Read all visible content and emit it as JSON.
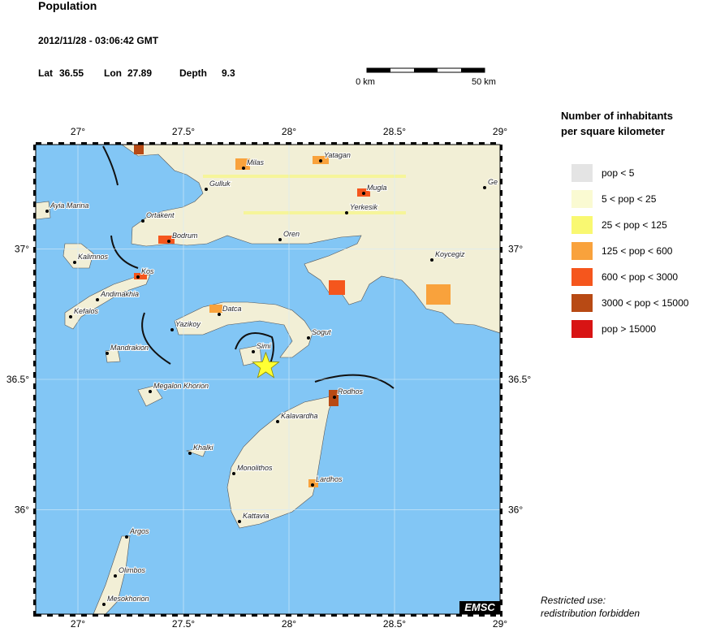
{
  "header": {
    "title": "Population",
    "datetime": "2012/11/28 - 03:06:42 GMT",
    "lat_label": "Lat",
    "lat": 36.55,
    "lon_label": "Lon",
    "lon": 27.89,
    "depth_label": "Depth",
    "depth": 9.3
  },
  "scale": {
    "start": "0 km",
    "end": "50 km"
  },
  "map": {
    "xlim": [
      26.8,
      29.0
    ],
    "ylim": [
      35.6,
      37.4
    ],
    "xticks": [
      {
        "value": 27,
        "label": "27°"
      },
      {
        "value": 27.5,
        "label": "27.5°"
      },
      {
        "value": 28,
        "label": "28°"
      },
      {
        "value": 28.5,
        "label": "28.5°"
      },
      {
        "value": 29,
        "label": "29°"
      }
    ],
    "yticks": [
      {
        "value": 36,
        "label": "36°"
      },
      {
        "value": 36.5,
        "label": "36.5°"
      },
      {
        "value": 37,
        "label": "37°"
      }
    ],
    "cities": [
      "Milas",
      "Yatagan",
      "Gulluk",
      "Mugla",
      "Yerkesik",
      "Ortakent",
      "Ayia Marina",
      "Bodrum",
      "Oren",
      "Koycegiz",
      "Kalimnos",
      "Kos",
      "Andimakhia",
      "Kefalos",
      "Datca",
      "Yazikoy",
      "Sogut",
      "Mandrakion",
      "Simi",
      "Megalon Khorion",
      "Rodhos",
      "Kalavardha",
      "Khalki",
      "Monolithos",
      "Lardhos",
      "Kattavia",
      "Argos",
      "Olimbos",
      "Mesokhorion",
      "Ge"
    ],
    "badge": "EMSC"
  },
  "legend": {
    "title": [
      "Number of inhabitants",
      "per square kilometer"
    ],
    "items": [
      {
        "label": "pop < 5",
        "color": "#e4e4e4"
      },
      {
        "label": "5 < pop < 25",
        "color": "#fafad2"
      },
      {
        "label": "25 < pop < 125",
        "color": "#f9f871"
      },
      {
        "label": "125 < pop < 600",
        "color": "#f9a23c"
      },
      {
        "label": "600 < pop < 3000",
        "color": "#f5561d"
      },
      {
        "label": "3000 < pop < 15000",
        "color": "#b84a14"
      },
      {
        "label": "pop > 15000",
        "color": "#d81414"
      }
    ]
  },
  "footer": [
    "Restricted use:",
    "redistribution forbidden"
  ]
}
